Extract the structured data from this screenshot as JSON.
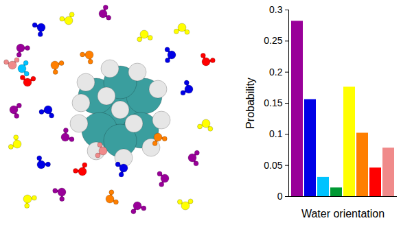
{
  "chart_data": {
    "type": "bar",
    "xlabel": "Water orientation",
    "ylabel": "Probability",
    "categories": [
      null,
      null,
      null,
      null,
      null,
      null,
      null,
      null
    ],
    "values": [
      0.282,
      0.156,
      0.031,
      0.014,
      0.176,
      0.102,
      0.046,
      0.078
    ],
    "colors": [
      "#990099",
      "#0000e6",
      "#00c3ff",
      "#009933",
      "#ffff00",
      "#ff7f00",
      "#ff0000",
      "#f08a8a"
    ],
    "ylim": [
      0,
      0.3
    ],
    "yticks": [
      0,
      0.05,
      0.1,
      0.15,
      0.2,
      0.25,
      0.3
    ],
    "grid": false,
    "tick_labels": "y"
  }
}
